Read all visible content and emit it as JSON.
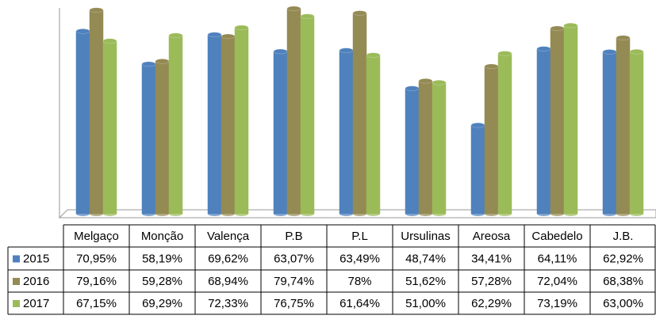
{
  "chart_data": {
    "type": "bar",
    "categories": [
      "Melgaço",
      "Monção",
      "Valença",
      "P.B",
      "P.L",
      "Ursulinas",
      "Areosa",
      "Cabedelo",
      "J.B."
    ],
    "series": [
      {
        "name": "2015",
        "color": "#4f81bd",
        "values": [
          70.95,
          58.19,
          69.62,
          63.07,
          63.49,
          48.74,
          34.41,
          64.11,
          62.92
        ],
        "value_labels": [
          "70,95%",
          "58,19%",
          "69,62%",
          "63,07%",
          "63,49%",
          "48,74%",
          "34,41%",
          "64,11%",
          "62,92%"
        ]
      },
      {
        "name": "2016",
        "color": "#948a54",
        "values": [
          79.16,
          59.28,
          68.94,
          79.74,
          78,
          51.62,
          57.28,
          72.04,
          68.38
        ],
        "value_labels": [
          "79,16%",
          "59,28%",
          "68,94%",
          "79,74%",
          "78%",
          "51,62%",
          "57,28%",
          "72,04%",
          "68,38%"
        ]
      },
      {
        "name": "2017",
        "color": "#9bbb59",
        "values": [
          67.15,
          69.29,
          72.33,
          76.75,
          61.64,
          51,
          62.29,
          73.19,
          63
        ],
        "value_labels": [
          "67,15%",
          "69,29%",
          "72,33%",
          "76,75%",
          "61,64%",
          "51,00%",
          "62,29%",
          "73,19%",
          "63,00%"
        ]
      }
    ],
    "ylim": [
      0,
      80
    ]
  }
}
